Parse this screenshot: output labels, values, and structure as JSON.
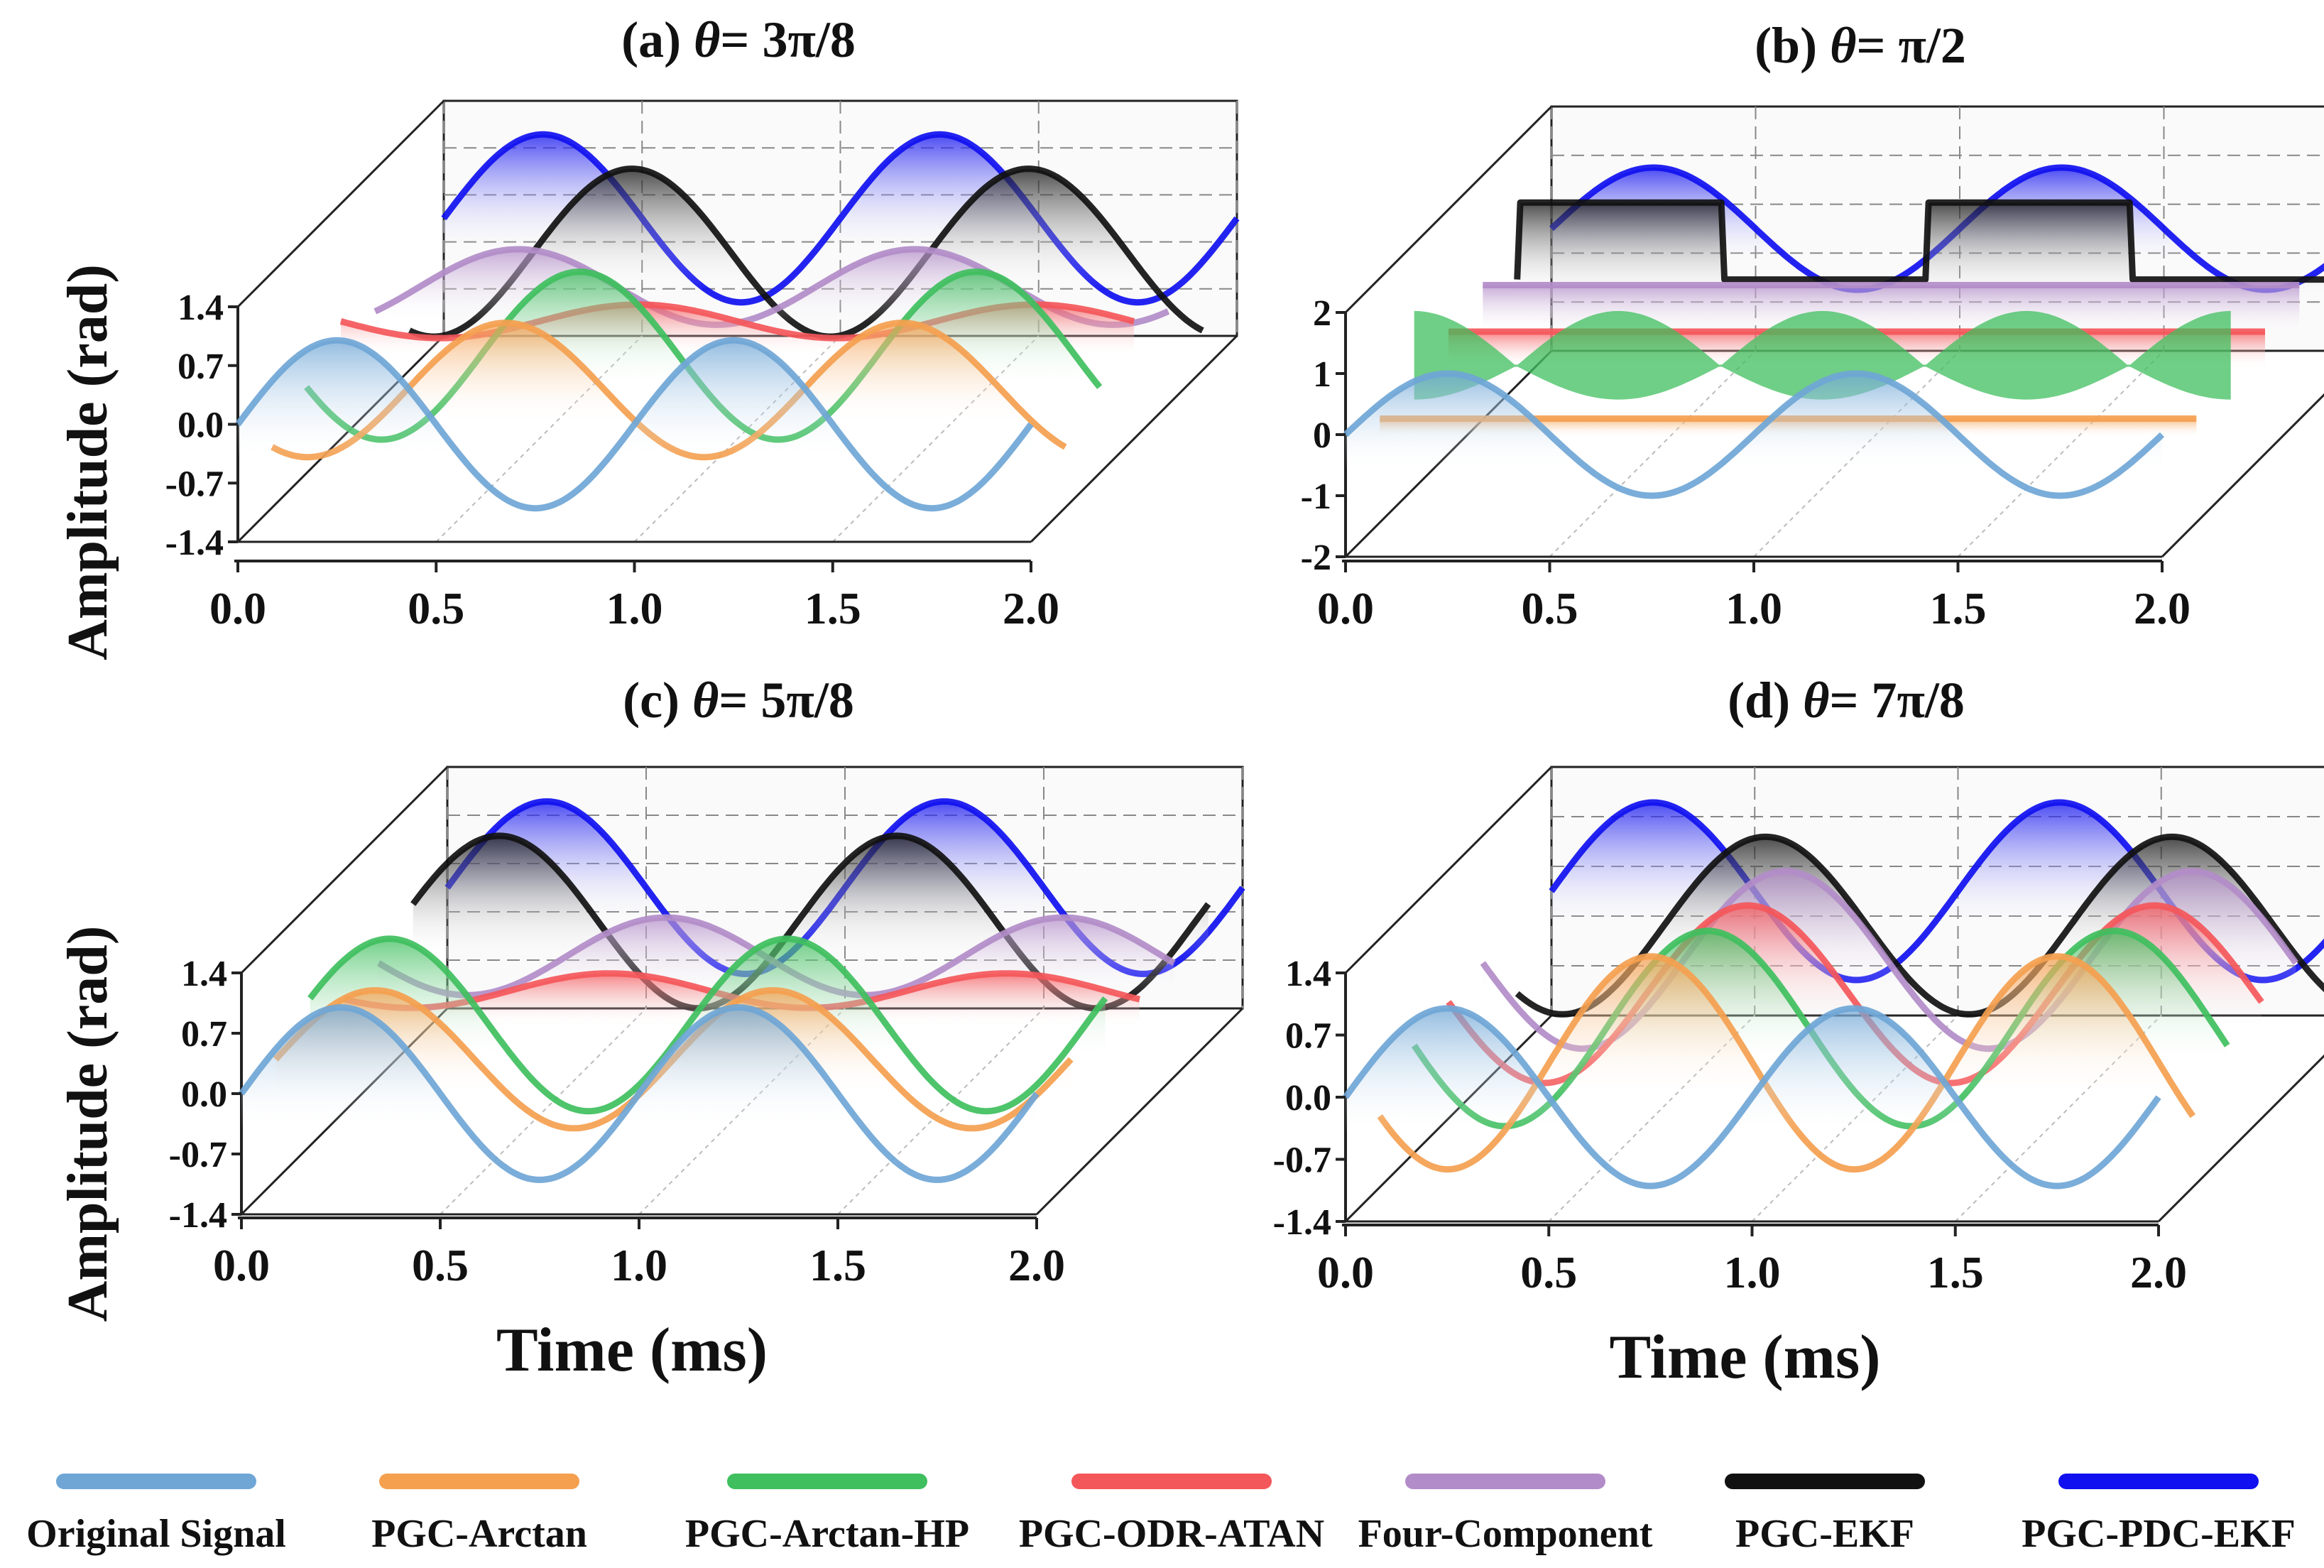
{
  "legend": {
    "items": [
      {
        "name": "Original Signal",
        "color": "#6fa6d6"
      },
      {
        "name": "PGC-Arctan",
        "color": "#f4a04f"
      },
      {
        "name": "PGC-Arctan-HP",
        "color": "#3fbf5e"
      },
      {
        "name": "PGC-ODR-ATAN",
        "color": "#f4575a"
      },
      {
        "name": "Four-Component",
        "color": "#b28cc8"
      },
      {
        "name": "PGC-EKF",
        "color": "#111111"
      },
      {
        "name": "PGC-PDC-EKF",
        "color": "#1010f0"
      }
    ]
  },
  "chart_data": [
    {
      "type": "line",
      "panel_label": "(a)",
      "title_theta": "θ",
      "title_value": "= 3π/8",
      "xlabel": "",
      "ylabel": "Amplitude (rad)",
      "xlim": [
        0,
        2
      ],
      "ylim": [
        -1.4,
        1.4
      ],
      "x_ticks": [
        "0.0",
        "0.5",
        "1.0",
        "1.5",
        "2.0"
      ],
      "y_ticks": [
        "-1.4",
        "-0.7",
        "0.0",
        "0.7",
        "1.4"
      ],
      "series": [
        {
          "name": "Original Signal",
          "amplitude": 1.0,
          "frequency_khz": 1.0,
          "phase_deg": 0,
          "shape": "sine",
          "depth_index": 0
        },
        {
          "name": "PGC-Arctan",
          "amplitude": 0.8,
          "frequency_khz": 1.0,
          "phase_deg": -122,
          "shape": "sine",
          "depth_index": 1
        },
        {
          "name": "PGC-Arctan-HP",
          "amplitude": 1.0,
          "frequency_khz": 1.0,
          "phase_deg": -158,
          "shape": "sine",
          "depth_index": 2
        },
        {
          "name": "PGC-ODR-ATAN",
          "amplitude": 0.2,
          "frequency_khz": 1.0,
          "phase_deg": -180,
          "shape": "sine",
          "depth_index": 3
        },
        {
          "name": "Four-Component",
          "amplitude": 0.45,
          "frequency_khz": 1.0,
          "phase_deg": -40,
          "shape": "sine",
          "depth_index": 4
        },
        {
          "name": "PGC-EKF",
          "amplitude": 1.0,
          "frequency_khz": 1.0,
          "phase_deg": -112,
          "shape": "sine",
          "depth_index": 5
        },
        {
          "name": "PGC-PDC-EKF",
          "amplitude": 1.0,
          "frequency_khz": 1.0,
          "phase_deg": 0,
          "shape": "sine",
          "depth_index": 6
        }
      ]
    },
    {
      "type": "line",
      "panel_label": "(b)",
      "title_theta": "θ",
      "title_value": "= π/2",
      "xlabel": "",
      "ylabel": "",
      "xlim": [
        0,
        2
      ],
      "ylim": [
        -2,
        2
      ],
      "x_ticks": [
        "0.0",
        "0.5",
        "1.0",
        "1.5",
        "2.0"
      ],
      "y_ticks": [
        "-2",
        "-1",
        "0",
        "1",
        "2"
      ],
      "series": [
        {
          "name": "Original Signal",
          "amplitude": 1.0,
          "frequency_khz": 1.0,
          "phase_deg": 0,
          "shape": "sine",
          "depth_index": 0
        },
        {
          "name": "PGC-Arctan",
          "amplitude": 0.0,
          "offset": -0.3,
          "shape": "flat",
          "depth_index": 1
        },
        {
          "name": "PGC-Arctan-HP",
          "amplitude": 1.0,
          "frequency_khz": 2.0,
          "shape": "noisy-envelope",
          "depth_index": 2
        },
        {
          "name": "PGC-ODR-ATAN",
          "amplitude": 0.0,
          "offset": 0.0,
          "shape": "flat",
          "depth_index": 3
        },
        {
          "name": "Four-Component",
          "amplitude": 0.0,
          "offset": 0.2,
          "shape": "flat",
          "depth_index": 4
        },
        {
          "name": "PGC-EKF",
          "amplitude": 1.8,
          "frequency_khz": 1.0,
          "shape": "square",
          "depth_index": 5
        },
        {
          "name": "PGC-PDC-EKF",
          "amplitude": 1.0,
          "frequency_khz": 1.0,
          "phase_deg": 0,
          "shape": "sine",
          "depth_index": 6
        }
      ]
    },
    {
      "type": "line",
      "panel_label": "(c)",
      "title_theta": "θ",
      "title_value": "= 5π/8",
      "xlabel": "Time (ms)",
      "ylabel": "Amplitude (rad)",
      "xlim": [
        0,
        2
      ],
      "ylim": [
        -1.4,
        1.4
      ],
      "x_ticks": [
        "0.0",
        "0.5",
        "1.0",
        "1.5",
        "2.0"
      ],
      "y_ticks": [
        "-1.4",
        "-0.7",
        "0.0",
        "0.7",
        "1.4"
      ],
      "series": [
        {
          "name": "Original Signal",
          "amplitude": 1.0,
          "frequency_khz": 1.0,
          "phase_deg": 0,
          "shape": "sine",
          "depth_index": 0
        },
        {
          "name": "PGC-Arctan",
          "amplitude": 0.8,
          "frequency_khz": 1.0,
          "phase_deg": 0,
          "shape": "sine",
          "depth_index": 1
        },
        {
          "name": "PGC-Arctan-HP",
          "amplitude": 1.0,
          "frequency_khz": 1.0,
          "phase_deg": 18,
          "shape": "sine",
          "depth_index": 2
        },
        {
          "name": "PGC-ODR-ATAN",
          "amplitude": 0.2,
          "frequency_khz": 1.0,
          "phase_deg": -150,
          "shape": "sine",
          "depth_index": 3
        },
        {
          "name": "Four-Component",
          "amplitude": 0.45,
          "frequency_khz": 1.0,
          "phase_deg": -170,
          "shape": "sine",
          "depth_index": 4
        },
        {
          "name": "PGC-EKF",
          "amplitude": 1.0,
          "frequency_khz": 1.0,
          "phase_deg": 12,
          "shape": "sine",
          "depth_index": 5
        },
        {
          "name": "PGC-PDC-EKF",
          "amplitude": 1.0,
          "frequency_khz": 1.0,
          "phase_deg": 0,
          "shape": "sine",
          "depth_index": 6
        }
      ]
    },
    {
      "type": "line",
      "panel_label": "(d)",
      "title_theta": "θ",
      "title_value": "= 7π/8",
      "xlabel": "Time (ms)",
      "ylabel": "",
      "xlim": [
        0,
        2
      ],
      "ylim": [
        -1.4,
        1.4
      ],
      "x_ticks": [
        "0.0",
        "0.5",
        "1.0",
        "1.5",
        "2.0"
      ],
      "y_ticks": [
        "-1.4",
        "-0.7",
        "0.0",
        "0.7",
        "1.4"
      ],
      "series": [
        {
          "name": "Original Signal",
          "amplitude": 1.0,
          "frequency_khz": 1.0,
          "phase_deg": 0,
          "shape": "sine",
          "depth_index": 0
        },
        {
          "name": "PGC-Arctan",
          "amplitude": 1.2,
          "frequency_khz": 1.0,
          "phase_deg": -150,
          "shape": "sine",
          "depth_index": 1
        },
        {
          "name": "PGC-Arctan-HP",
          "amplitude": 1.1,
          "frequency_khz": 1.0,
          "phase_deg": -170,
          "shape": "sine",
          "depth_index": 2
        },
        {
          "name": "PGC-ODR-ATAN",
          "amplitude": 1.0,
          "frequency_khz": 1.0,
          "phase_deg": -175,
          "shape": "sine",
          "depth_index": 3
        },
        {
          "name": "Four-Component",
          "amplitude": 1.0,
          "frequency_khz": 1.0,
          "phase_deg": -178,
          "shape": "sine",
          "depth_index": 4
        },
        {
          "name": "PGC-EKF",
          "amplitude": 1.0,
          "frequency_khz": 1.0,
          "phase_deg": -130,
          "shape": "sine",
          "depth_index": 5
        },
        {
          "name": "PGC-PDC-EKF",
          "amplitude": 1.0,
          "frequency_khz": 1.0,
          "phase_deg": 0,
          "shape": "sine",
          "depth_index": 6
        }
      ]
    }
  ]
}
